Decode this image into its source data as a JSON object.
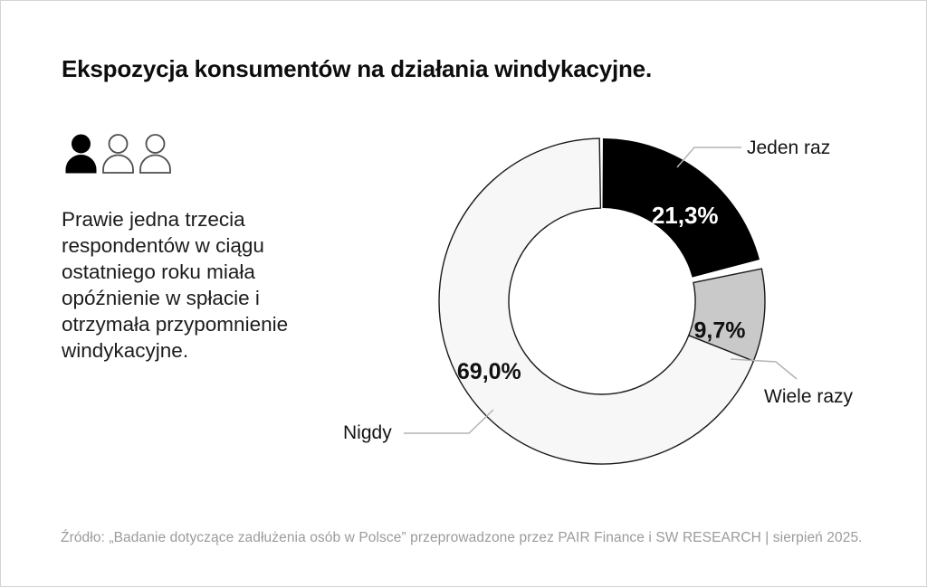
{
  "page": {
    "title": "Ekspozycja konsumentów na działania windykacyjne.",
    "description_lines": [
      "Prawie jedna trzecia",
      "respondentów w ciągu",
      "ostatniego roku miała",
      "opóźnienie w spłacie i",
      "otrzymała przypomnienie",
      "windykacyjne."
    ],
    "description": "Prawie jedna trzecia respondentów w ciągu ostatniego roku miała opóźnienie w spłacie i otrzymała przypomnienie windykacyjne.",
    "source": "Źródło: „Badanie dotyczące zadłużenia osób w Polsce” przeprowadzone przez PAIR Finance i SW RESEARCH | sierpień 2025."
  },
  "icons": {
    "people": [
      {
        "name": "person-icon",
        "style": "filled"
      },
      {
        "name": "person-icon",
        "style": "outline"
      },
      {
        "name": "person-icon",
        "style": "outline"
      }
    ]
  },
  "chart_data": {
    "type": "pie",
    "subtype": "donut",
    "title": "Ekspozycja konsumentów na działania windykacyjne.",
    "start_angle_deg": 0,
    "direction": "clockwise",
    "legend_position": "callout-labels",
    "segments": [
      {
        "label": "Jeden raz",
        "value": 21.3,
        "display": "21,3%",
        "color": "#000000",
        "label_color": "#ffffff"
      },
      {
        "label": "Wiele razy",
        "value": 9.7,
        "display": "9,7%",
        "color": "#c9c9c9",
        "label_color": "#111111"
      },
      {
        "label": "Nigdy",
        "value": 69.0,
        "display": "69,0%",
        "color": "#f7f7f7",
        "label_color": "#111111"
      }
    ]
  },
  "colors": {
    "stroke": "#1a1a1a",
    "leader_line": "#b3b3b3",
    "source_text": "#9b9b9b",
    "background": "#ffffff"
  }
}
